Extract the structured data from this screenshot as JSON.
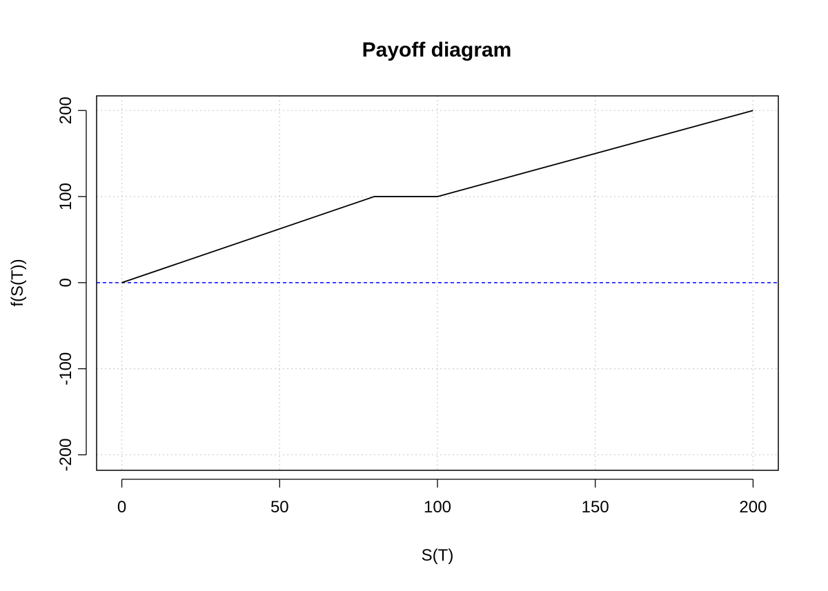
{
  "chart_data": {
    "type": "line",
    "title": "Payoff diagram",
    "xlabel": "S(T)",
    "ylabel": "f(S(T))",
    "xlim": [
      -8,
      208
    ],
    "ylim": [
      -218,
      217
    ],
    "xticks": [
      0,
      50,
      100,
      150,
      200
    ],
    "yticks": [
      -200,
      -100,
      0,
      100,
      200
    ],
    "grid": true,
    "series": [
      {
        "x": [
          0,
          80,
          100,
          200
        ],
        "y": [
          0,
          100,
          100,
          200
        ],
        "color": "#000000"
      }
    ],
    "reference_lines": [
      {
        "orientation": "horizontal",
        "y": 0,
        "color": "#0000ff",
        "style": "dashed"
      }
    ]
  }
}
